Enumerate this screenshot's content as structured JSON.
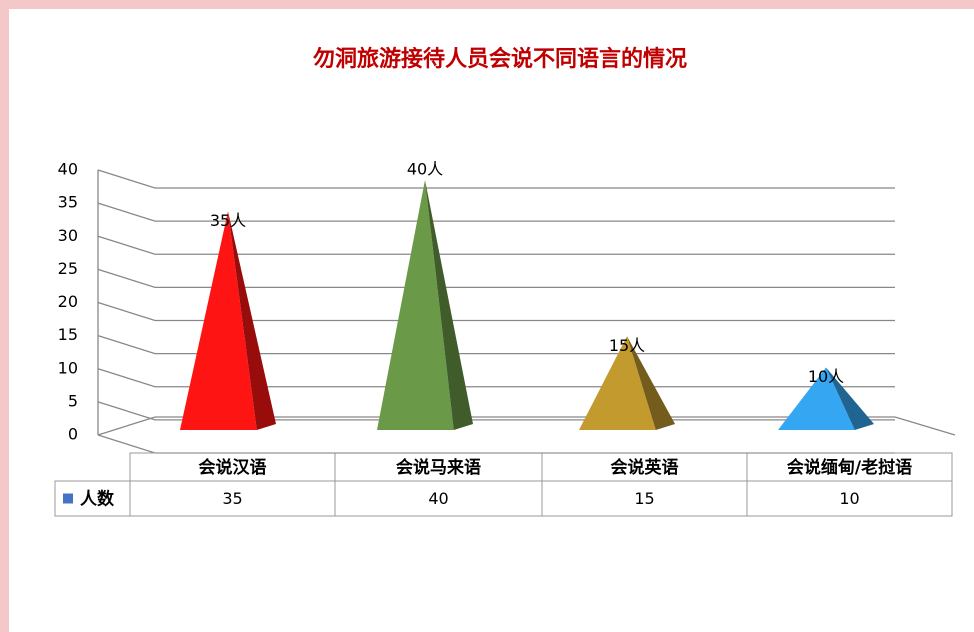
{
  "chart_data": {
    "type": "pyramid3d",
    "title": "勿洞旅游接待人员会说不同语言的情况",
    "categories": [
      "会说汉语",
      "会说马来语",
      "会说英语",
      "会说缅甸/老挝语"
    ],
    "series": [
      {
        "name": "人数",
        "color": "#4472c4",
        "values": [
          35,
          40,
          15,
          10
        ],
        "value_labels": [
          "35人",
          "40人",
          "15人",
          "10人"
        ],
        "colors": [
          "#ff1414",
          "#6a9a48",
          "#c29a2e",
          "#35a6f2"
        ]
      }
    ],
    "ylim": [
      0,
      40
    ],
    "yticks": [
      0,
      5,
      10,
      15,
      20,
      25,
      30,
      35,
      40
    ],
    "grid": true,
    "data_table": true
  }
}
